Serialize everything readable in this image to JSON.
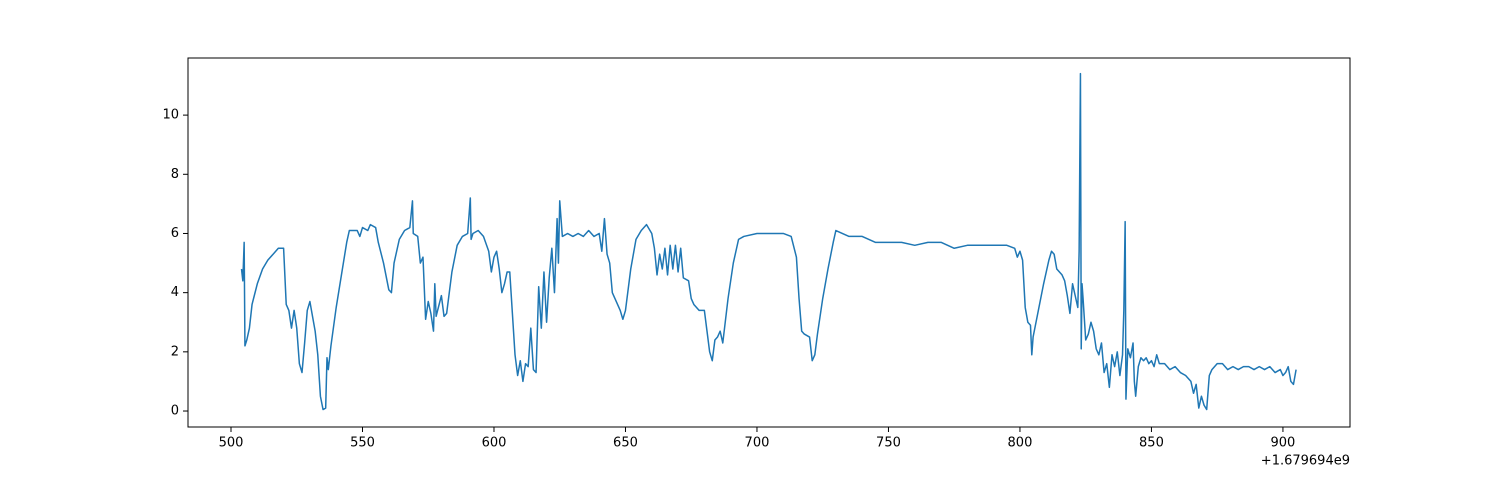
{
  "chart_data": {
    "type": "line",
    "color": "#1f77b4",
    "grid": false,
    "x_offset_label": "+1.679694e9",
    "xlim": [
      483.65,
      925.5
    ],
    "xticks": [
      500,
      550,
      600,
      650,
      700,
      750,
      800,
      850,
      900
    ],
    "ylim": [
      -0.54,
      11.93
    ],
    "yticks": [
      0,
      2,
      4,
      6,
      8,
      10
    ],
    "x": [
      504,
      504.5,
      505,
      505.3,
      506,
      507,
      508,
      510,
      512,
      514,
      516,
      518,
      520,
      521,
      522,
      523,
      524,
      525,
      526,
      527,
      528,
      529,
      530,
      531,
      532,
      533,
      534,
      535,
      536,
      536.5,
      537,
      538,
      540,
      542,
      544,
      545,
      548,
      549,
      550,
      552,
      553,
      555,
      556,
      558,
      560,
      561,
      562,
      564,
      566,
      568,
      569,
      569.3,
      571,
      572,
      573,
      574,
      575,
      576,
      577,
      577.5,
      578,
      580,
      581,
      582,
      584,
      586,
      588,
      590,
      591,
      591.3,
      592,
      594,
      596,
      598,
      599,
      600,
      601,
      602,
      603,
      604,
      605,
      606,
      607,
      608,
      609,
      610,
      611,
      612,
      613,
      614,
      615,
      616,
      617,
      618,
      619,
      620,
      621,
      622,
      623,
      624,
      624.5,
      625,
      626,
      628,
      630,
      632,
      634,
      636,
      638,
      640,
      641,
      642,
      643,
      644,
      645,
      646,
      648,
      649,
      650,
      652,
      654,
      656,
      658,
      660,
      661,
      662,
      663,
      664,
      665,
      666,
      667,
      668,
      669,
      670,
      671,
      672,
      674,
      675,
      676,
      678,
      680,
      681,
      682,
      683,
      684,
      685,
      686,
      687,
      689,
      691,
      693,
      695,
      700,
      705,
      710,
      713,
      715,
      716,
      717,
      718,
      720,
      721,
      722,
      723,
      725,
      727,
      729,
      730,
      735,
      740,
      745,
      750,
      755,
      760,
      765,
      770,
      775,
      780,
      785,
      790,
      795,
      798,
      799,
      800,
      801,
      802,
      803,
      804,
      804.5,
      805,
      807,
      809,
      811,
      812,
      813,
      814,
      816,
      817,
      818,
      819,
      820,
      821,
      822,
      822.5,
      823,
      823.3,
      823.6,
      824,
      825,
      826,
      827,
      828,
      829,
      830,
      831,
      832,
      833,
      834,
      835,
      836,
      837,
      838,
      839,
      839.5,
      840,
      840.3,
      841,
      842,
      843,
      843.5,
      844,
      845,
      846,
      847,
      848,
      849,
      850,
      851,
      852,
      853,
      855,
      857,
      859,
      861,
      863,
      865,
      866,
      867,
      868,
      869,
      870,
      871,
      872,
      873,
      875,
      877,
      879,
      881,
      883,
      885,
      887,
      889,
      891,
      893,
      895,
      897,
      899,
      900,
      901,
      902,
      903,
      904,
      905
    ],
    "values": [
      4.8,
      4.4,
      5.7,
      2.2,
      2.4,
      2.8,
      3.6,
      4.3,
      4.8,
      5.1,
      5.3,
      5.5,
      5.5,
      3.6,
      3.4,
      2.8,
      3.4,
      2.8,
      1.6,
      1.3,
      2.3,
      3.4,
      3.7,
      3.2,
      2.7,
      1.9,
      0.5,
      0.05,
      0.1,
      1.8,
      1.4,
      2.2,
      3.5,
      4.6,
      5.7,
      6.1,
      6.1,
      5.9,
      6.2,
      6.1,
      6.3,
      6.2,
      5.7,
      5.0,
      4.1,
      4.0,
      5.0,
      5.8,
      6.1,
      6.2,
      7.1,
      6.0,
      5.9,
      5.0,
      5.2,
      3.1,
      3.7,
      3.3,
      2.7,
      4.3,
      3.2,
      3.9,
      3.2,
      3.3,
      4.7,
      5.6,
      5.9,
      6.0,
      7.2,
      5.8,
      6.0,
      6.1,
      5.9,
      5.4,
      4.7,
      5.2,
      5.4,
      4.8,
      4.0,
      4.3,
      4.7,
      4.7,
      3.3,
      1.9,
      1.2,
      1.7,
      1.0,
      1.6,
      1.5,
      2.8,
      1.4,
      1.3,
      4.2,
      2.8,
      4.7,
      3.0,
      4.5,
      5.5,
      4.0,
      6.5,
      5.0,
      7.1,
      5.9,
      6.0,
      5.9,
      6.0,
      5.9,
      6.1,
      5.9,
      6.0,
      5.4,
      6.5,
      5.3,
      5.0,
      4.0,
      3.8,
      3.4,
      3.1,
      3.4,
      4.8,
      5.8,
      6.1,
      6.3,
      6.0,
      5.5,
      4.6,
      5.3,
      4.8,
      5.5,
      4.6,
      5.6,
      4.8,
      5.6,
      4.7,
      5.5,
      4.5,
      4.4,
      3.8,
      3.6,
      3.4,
      3.4,
      2.7,
      2.0,
      1.7,
      2.4,
      2.5,
      2.7,
      2.3,
      3.8,
      5.0,
      5.8,
      5.9,
      6.0,
      6.0,
      6.0,
      5.9,
      5.2,
      3.8,
      2.7,
      2.6,
      2.5,
      1.7,
      1.9,
      2.6,
      3.8,
      4.8,
      5.7,
      6.1,
      5.9,
      5.9,
      5.7,
      5.7,
      5.7,
      5.6,
      5.7,
      5.7,
      5.5,
      5.6,
      5.6,
      5.6,
      5.6,
      5.5,
      5.2,
      5.4,
      5.1,
      3.5,
      3.0,
      2.9,
      1.9,
      2.5,
      3.4,
      4.3,
      5.1,
      5.4,
      5.3,
      4.8,
      4.6,
      4.4,
      3.9,
      3.3,
      4.3,
      3.9,
      3.5,
      5.4,
      11.4,
      2.1,
      4.3,
      3.8,
      2.4,
      2.6,
      3.0,
      2.7,
      2.1,
      1.9,
      2.3,
      1.3,
      1.6,
      0.8,
      1.9,
      1.5,
      2.0,
      1.2,
      1.9,
      3.4,
      6.4,
      0.4,
      2.1,
      1.8,
      2.3,
      1.0,
      0.5,
      1.5,
      1.8,
      1.7,
      1.8,
      1.6,
      1.7,
      1.5,
      1.9,
      1.6,
      1.6,
      1.4,
      1.5,
      1.3,
      1.2,
      1.0,
      0.6,
      0.9,
      0.1,
      0.5,
      0.2,
      0.05,
      1.2,
      1.4,
      1.6,
      1.6,
      1.4,
      1.5,
      1.4,
      1.5,
      1.5,
      1.4,
      1.5,
      1.4,
      1.5,
      1.3,
      1.4,
      1.2,
      1.3,
      1.5,
      1.0,
      0.9,
      1.4
    ]
  }
}
